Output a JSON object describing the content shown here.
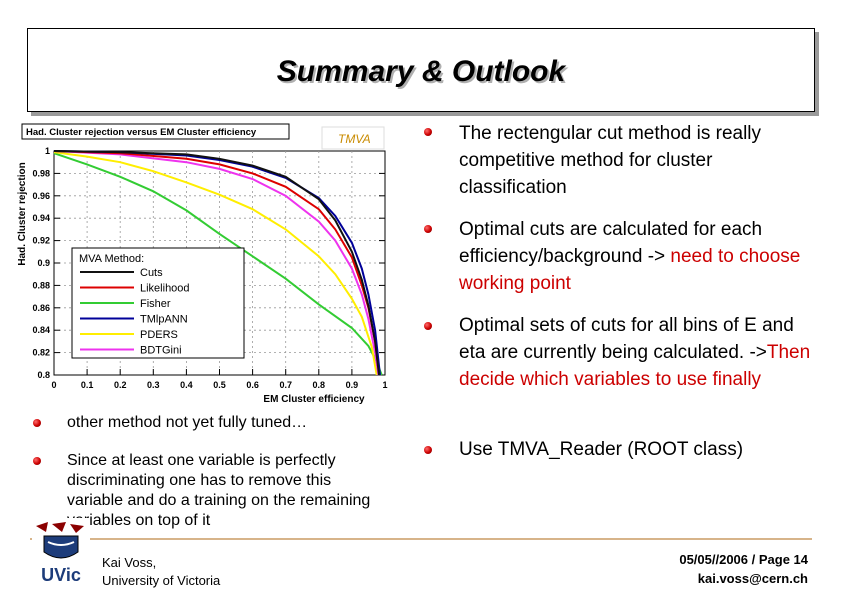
{
  "slide": {
    "title": "Summary & Outlook"
  },
  "chart": {
    "title": "Had. Cluster rejection versus EM Cluster efficiency",
    "logo_text": "TMVA",
    "xlabel": "EM Cluster efficiency",
    "ylabel": "Had. Cluster rejection",
    "xticks": [
      "0",
      "0.1",
      "0.2",
      "0.3",
      "0.4",
      "0.5",
      "0.6",
      "0.7",
      "0.8",
      "0.9",
      "1"
    ],
    "yticks": [
      "1",
      "0.98",
      "0.96",
      "0.94",
      "0.92",
      "0.9",
      "0.88",
      "0.86",
      "0.84",
      "0.82",
      "0.8"
    ],
    "legend_title": "MVA Method:",
    "legend": [
      "Cuts",
      "Likelihood",
      "Fisher",
      "TMlpANN",
      "PDERS",
      "BDTGini"
    ]
  },
  "chart_data": {
    "type": "line",
    "title": "Had. Cluster rejection versus EM Cluster efficiency",
    "xlabel": "EM Cluster efficiency",
    "ylabel": "Had. Cluster rejection",
    "xlim": [
      0,
      1
    ],
    "ylim": [
      0.8,
      1
    ],
    "grid": true,
    "legend_title": "MVA Method:",
    "legend_position": "lower-left",
    "series": [
      {
        "name": "Fisher",
        "color": "#33cc33",
        "x": [
          0,
          0.1,
          0.2,
          0.3,
          0.4,
          0.5,
          0.6,
          0.7,
          0.8,
          0.9,
          0.95,
          0.975,
          0.99
        ],
        "y": [
          0.998,
          0.988,
          0.977,
          0.964,
          0.947,
          0.926,
          0.906,
          0.886,
          0.863,
          0.842,
          0.826,
          0.812,
          0.8
        ]
      },
      {
        "name": "PDERS",
        "color": "#ffee00",
        "x": [
          0,
          0.1,
          0.2,
          0.3,
          0.4,
          0.5,
          0.6,
          0.7,
          0.8,
          0.85,
          0.9,
          0.93,
          0.96,
          0.975
        ],
        "y": [
          0.999,
          0.995,
          0.99,
          0.982,
          0.972,
          0.961,
          0.948,
          0.93,
          0.906,
          0.89,
          0.868,
          0.852,
          0.825,
          0.8
        ]
      },
      {
        "name": "BDTGini",
        "color": "#ee33ee",
        "x": [
          0,
          0.2,
          0.4,
          0.5,
          0.6,
          0.7,
          0.8,
          0.85,
          0.9,
          0.93,
          0.95,
          0.97,
          0.98
        ],
        "y": [
          1.0,
          0.997,
          0.99,
          0.984,
          0.975,
          0.96,
          0.937,
          0.92,
          0.895,
          0.872,
          0.85,
          0.82,
          0.8
        ]
      },
      {
        "name": "Likelihood",
        "color": "#dd0000",
        "x": [
          0,
          0.2,
          0.4,
          0.5,
          0.6,
          0.7,
          0.8,
          0.85,
          0.9,
          0.93,
          0.95,
          0.97,
          0.983
        ],
        "y": [
          1.0,
          0.998,
          0.993,
          0.988,
          0.98,
          0.968,
          0.948,
          0.93,
          0.905,
          0.88,
          0.86,
          0.83,
          0.8
        ]
      },
      {
        "name": "TMlpANN",
        "color": "#000099",
        "x": [
          0,
          0.2,
          0.4,
          0.5,
          0.6,
          0.7,
          0.8,
          0.85,
          0.9,
          0.93,
          0.95,
          0.97,
          0.985
        ],
        "y": [
          1.0,
          0.999,
          0.996,
          0.992,
          0.986,
          0.976,
          0.958,
          0.942,
          0.918,
          0.895,
          0.872,
          0.84,
          0.8
        ]
      },
      {
        "name": "Cuts",
        "color": "#111111",
        "x": [
          0,
          0.2,
          0.4,
          0.5,
          0.6,
          0.7,
          0.8,
          0.85,
          0.9,
          0.93,
          0.95,
          0.97,
          0.982
        ],
        "y": [
          1.0,
          0.999,
          0.997,
          0.993,
          0.987,
          0.977,
          0.957,
          0.938,
          0.91,
          0.885,
          0.862,
          0.83,
          0.8
        ]
      }
    ]
  },
  "right_bullets": [
    {
      "parts": [
        {
          "text": "The rectengular cut method is really competitive method for cluster classification",
          "red": false
        }
      ]
    },
    {
      "parts": [
        {
          "text": "Optimal  cuts are calculated for each efficiency/background -> ",
          "red": false
        },
        {
          "text": "need to choose working point",
          "red": true
        }
      ]
    },
    {
      "parts": [
        {
          "text": "Optimal sets of cuts for all bins of E and eta are currently being calculated. ->",
          "red": false
        },
        {
          "text": "Then decide which variables to use finally",
          "red": true
        }
      ]
    },
    {
      "parts": [
        {
          "text": "Use TMVA_Reader (ROOT class)",
          "red": false
        }
      ]
    }
  ],
  "left_bullets": [
    {
      "text": "other method not yet fully tuned…"
    },
    {
      "text": "Since at least one variable is perfectly discriminating one has  to remove this variable and do a training on the remaining variables on top of it"
    }
  ],
  "footer": {
    "logo_text": "UVic",
    "speaker_name": "Kai  Voss,",
    "speaker_affiliation": "University of Victoria",
    "date_page": "05/05//2006  /  Page 14",
    "email": "kai.voss@cern.ch"
  },
  "colors": {
    "accent_red": "#cc0000",
    "footer_rule": "#d7b48a"
  }
}
